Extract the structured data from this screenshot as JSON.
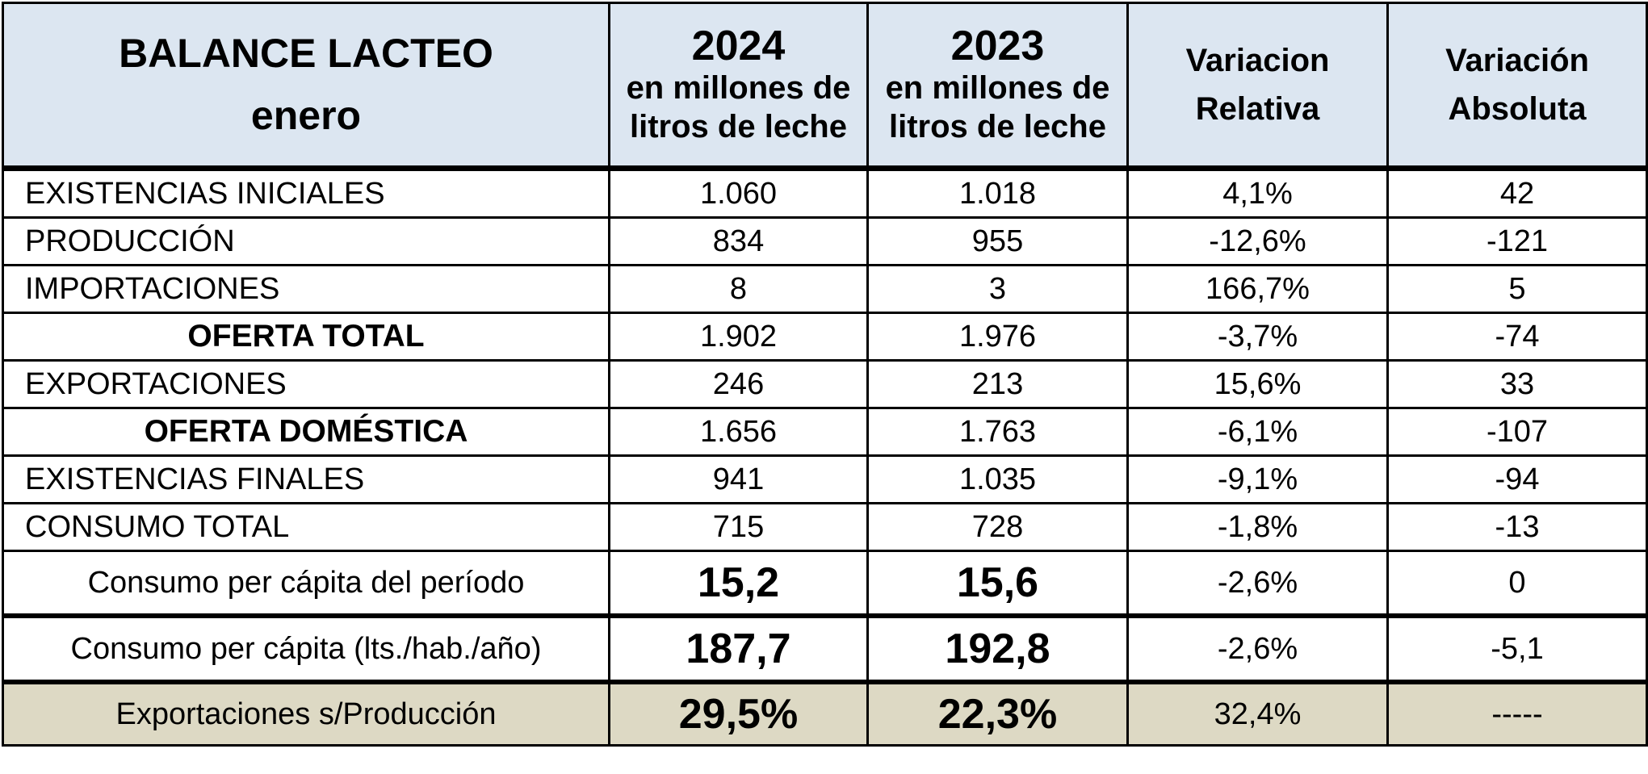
{
  "header": {
    "title_line1": "BALANCE LACTEO",
    "title_line2": "enero",
    "col2024_year": "2024",
    "col2024_sub1": "en millones de",
    "col2024_sub2": "litros de leche",
    "col2023_year": "2023",
    "col2023_sub1": "en millones de",
    "col2023_sub2": "litros de leche",
    "var_rel_line1": "Variacion",
    "var_rel_line2": "Relativa",
    "var_abs_line1": "Variación",
    "var_abs_line2": "Absoluta"
  },
  "rows": [
    {
      "label": "EXISTENCIAS  INICIALES",
      "v2024": "1.060",
      "v2023": "1.018",
      "rel": "4,1%",
      "abs": "42"
    },
    {
      "label": "PRODUCCIÓN",
      "v2024": "834",
      "v2023": "955",
      "rel": "-12,6%",
      "abs": "-121"
    },
    {
      "label": "IMPORTACIONES",
      "v2024": "8",
      "v2023": "3",
      "rel": "166,7%",
      "abs": "5"
    },
    {
      "label": "OFERTA TOTAL",
      "v2024": "1.902",
      "v2023": "1.976",
      "rel": "-3,7%",
      "abs": "-74"
    },
    {
      "label": "EXPORTACIONES",
      "v2024": "246",
      "v2023": "213",
      "rel": "15,6%",
      "abs": "33"
    },
    {
      "label": "OFERTA DOMÉSTICA",
      "v2024": "1.656",
      "v2023": "1.763",
      "rel": "-6,1%",
      "abs": "-107"
    },
    {
      "label": "EXISTENCIAS FINALES",
      "v2024": "941",
      "v2023": "1.035",
      "rel": "-9,1%",
      "abs": "-94"
    },
    {
      "label": "CONSUMO TOTAL",
      "v2024": "715",
      "v2023": "728",
      "rel": "-1,8%",
      "abs": "-13"
    },
    {
      "label": "Consumo per cápita del período",
      "v2024": "15,2",
      "v2023": "15,6",
      "rel": "-2,6%",
      "abs": "0"
    },
    {
      "label": "Consumo per cápita (lts./hab./año)",
      "v2024": "187,7",
      "v2023": "192,8",
      "rel": "-2,6%",
      "abs": "-5,1"
    },
    {
      "label": "Exportaciones s/Producción",
      "v2024": "29,5%",
      "v2023": "22,3%",
      "rel": "32,4%",
      "abs": "-----"
    }
  ],
  "colors": {
    "header_bg": "#dce6f1",
    "footer_bg": "#ddd9c4",
    "border": "#000000"
  }
}
